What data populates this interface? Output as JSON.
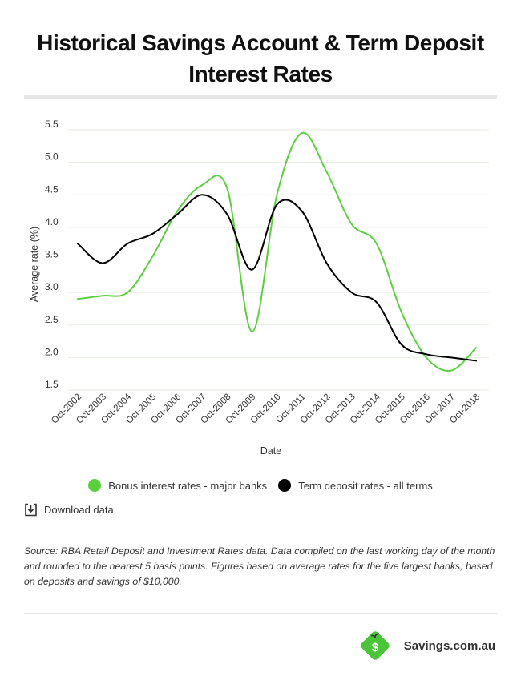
{
  "header": {
    "title": "Historical Savings Account & Term Deposit Interest Rates"
  },
  "chart_data": {
    "type": "line",
    "xlabel": "Date",
    "ylabel": "Average rate (%)",
    "categories": [
      "Oct-2002",
      "Oct-2003",
      "Oct-2004",
      "Oct-2005",
      "Oct-2006",
      "Oct-2007",
      "Oct-2008",
      "Oct-2009",
      "Oct-2010",
      "Oct-2011",
      "Oct-2012",
      "Oct-2013",
      "Oct-2014",
      "Oct-2015",
      "Oct-2016",
      "Oct-2017",
      "Oct-2018"
    ],
    "yticks": [
      "5.5",
      "5.0",
      "4.5",
      "4.0",
      "3.5",
      "3.0",
      "2.5",
      "2.0",
      "1.5"
    ],
    "ylim": [
      1.5,
      5.5
    ],
    "grid": true,
    "legend_position": "bottom",
    "series": [
      {
        "name": "Bonus interest rates - major banks",
        "color": "#5ccf3f",
        "values": [
          2.9,
          2.95,
          3.0,
          3.55,
          4.25,
          4.65,
          4.6,
          2.4,
          4.5,
          5.45,
          4.85,
          4.05,
          3.75,
          2.7,
          2.0,
          1.8,
          2.15
        ]
      },
      {
        "name": "Term deposit rates - all terms",
        "color": "#000000",
        "values": [
          3.75,
          3.45,
          3.75,
          3.9,
          4.2,
          4.5,
          4.2,
          3.35,
          4.35,
          4.25,
          3.45,
          3.0,
          2.85,
          2.2,
          2.05,
          2.0,
          1.95
        ]
      }
    ]
  },
  "download": {
    "label": "Download data",
    "icon": "download-icon"
  },
  "source": {
    "text": "Source: RBA Retail Deposit and Investment Rates data. Data compiled on the last working day of the month and rounded to the nearest 5 basis points. Figures based on average rates for the five largest banks, based on deposits and savings of $10,000."
  },
  "brand": {
    "name": "Savings.com.au",
    "logo_color": "#4cc43a",
    "logo_letter": "$"
  }
}
